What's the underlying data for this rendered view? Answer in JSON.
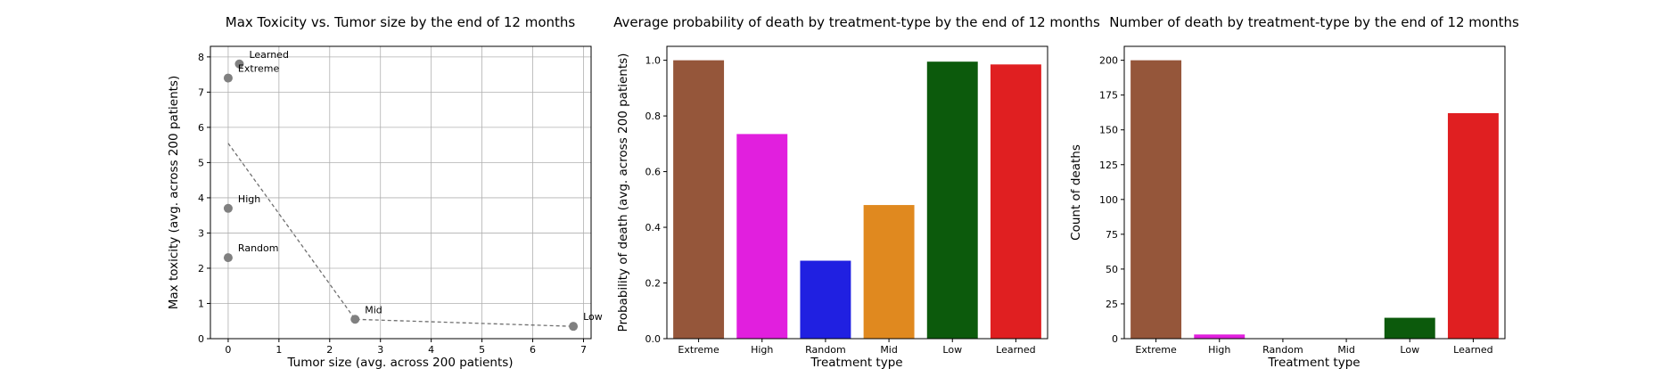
{
  "chart_data": [
    {
      "type": "scatter",
      "title": "Max Toxicity vs. Tumor size by the end of 12 months",
      "xlabel": "Tumor size (avg. across 200 patients)",
      "ylabel": "Max toxicity (avg. across 200 patients)",
      "xlim": [
        -0.35,
        7.15
      ],
      "ylim": [
        0,
        8.3
      ],
      "xticks": [
        "0",
        "1",
        "2",
        "3",
        "4",
        "5",
        "6",
        "7"
      ],
      "yticks": [
        "0",
        "1",
        "2",
        "3",
        "4",
        "5",
        "6",
        "7",
        "8"
      ],
      "grid": true,
      "marker_color": "#808080",
      "points": [
        {
          "label": "Learned",
          "x": 0.22,
          "y": 7.8
        },
        {
          "label": "Extreme",
          "x": 0.0,
          "y": 7.4
        },
        {
          "label": "High",
          "x": 0.0,
          "y": 3.7
        },
        {
          "label": "Random",
          "x": 0.0,
          "y": 2.3
        },
        {
          "label": "Mid",
          "x": 2.5,
          "y": 0.55
        },
        {
          "label": "Low",
          "x": 6.8,
          "y": 0.35
        }
      ],
      "trend_line": [
        {
          "x": 0.0,
          "y": 5.55
        },
        {
          "x": 2.5,
          "y": 0.55
        },
        {
          "x": 6.8,
          "y": 0.35
        }
      ]
    },
    {
      "type": "bar",
      "title": "Average probability of death by treatment-type by the end of 12 months",
      "xlabel": "Treatment type",
      "ylabel": "Probability of death (avg. across 200 patients)",
      "ylim": [
        0,
        1.05
      ],
      "yticks": [
        "0.0",
        "0.2",
        "0.4",
        "0.6",
        "0.8",
        "1.0"
      ],
      "categories": [
        "Extreme",
        "High",
        "Random",
        "Mid",
        "Low",
        "Learned"
      ],
      "values": [
        1.0,
        0.735,
        0.28,
        0.48,
        0.995,
        0.985
      ],
      "colors": [
        "#95563a",
        "#e11fde",
        "#2020e1",
        "#e0891f",
        "#0c5a0c",
        "#e01f21"
      ]
    },
    {
      "type": "bar",
      "title": "Number of death by treatment-type by the end of 12 months",
      "xlabel": "Treatment type",
      "ylabel": "Count of deaths",
      "ylim": [
        0,
        210
      ],
      "yticks": [
        "0",
        "25",
        "50",
        "75",
        "100",
        "125",
        "150",
        "175",
        "200"
      ],
      "categories": [
        "Extreme",
        "High",
        "Random",
        "Mid",
        "Low",
        "Learned"
      ],
      "values": [
        200,
        3,
        0,
        0,
        15,
        162
      ],
      "colors": [
        "#95563a",
        "#e11fde",
        "#2020e1",
        "#e0891f",
        "#0c5a0c",
        "#e01f21"
      ]
    }
  ]
}
